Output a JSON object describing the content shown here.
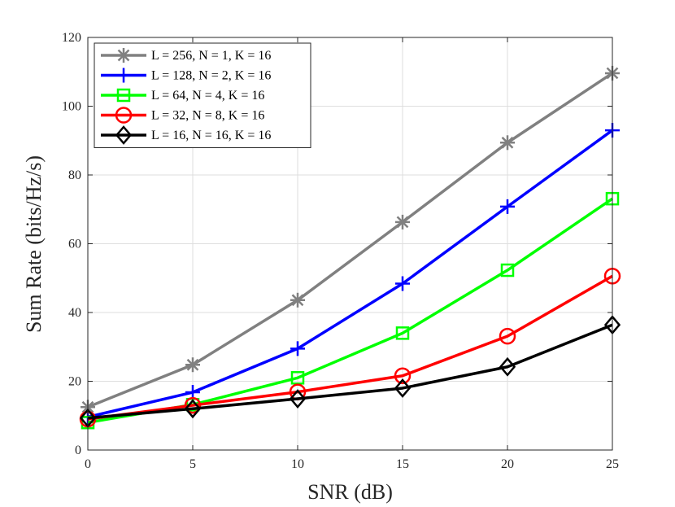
{
  "chart_data": {
    "type": "line",
    "xlabel": "SNR (dB)",
    "ylabel": "Sum Rate (bits/Hz/s)",
    "x": [
      0,
      5,
      10,
      15,
      20,
      25
    ],
    "xlim": [
      0,
      25
    ],
    "ylim": [
      0,
      120
    ],
    "xticks": [
      "0",
      "5",
      "10",
      "15",
      "20",
      "25"
    ],
    "yticks": [
      "0",
      "20",
      "40",
      "60",
      "80",
      "100",
      "120"
    ],
    "grid": true,
    "legend_position": "top-left",
    "series": [
      {
        "name": "L = 256, N = 1, K = 16",
        "color": "#808080",
        "marker": "asterisk",
        "values": [
          12.5,
          24.8,
          43.6,
          66.3,
          89.4,
          109.6
        ]
      },
      {
        "name": "L = 128, N = 2, K = 16",
        "color": "#0000ff",
        "marker": "plus",
        "values": [
          9.6,
          16.8,
          29.5,
          48.4,
          70.8,
          93.0
        ]
      },
      {
        "name": "L = 64, N = 4, K = 16",
        "color": "#00ff00",
        "marker": "square",
        "values": [
          8.0,
          13.2,
          21.0,
          34.0,
          52.3,
          73.1
        ]
      },
      {
        "name": "L = 32, N = 8, K = 16",
        "color": "#ff0000",
        "marker": "circle",
        "values": [
          9.0,
          13.0,
          16.9,
          21.6,
          33.1,
          50.6
        ]
      },
      {
        "name": "L = 16, N = 16, K = 16",
        "color": "#000000",
        "marker": "diamond",
        "values": [
          9.3,
          12.0,
          14.9,
          18.0,
          24.2,
          36.4
        ]
      }
    ]
  }
}
